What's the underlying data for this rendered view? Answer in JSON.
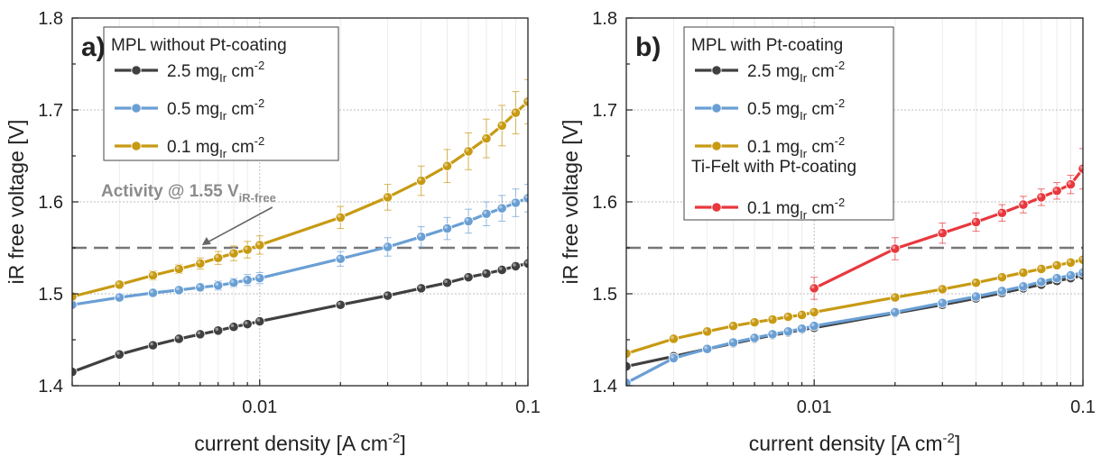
{
  "chart_data": [
    {
      "type": "line",
      "panel_label": "a)",
      "xlabel": "current density [A cm",
      "xlabel_sup": "-2",
      "xlabel_end": "]",
      "ylabel": "iR free voltage [V]",
      "xscale": "log",
      "xlim": [
        0.002,
        0.1
      ],
      "ylim": [
        1.4,
        1.8
      ],
      "x_ticks": [
        0.01,
        0.1
      ],
      "x_tick_labels": [
        "0.01",
        "0.1"
      ],
      "y_ticks": [
        1.4,
        1.5,
        1.6,
        1.7,
        1.8
      ],
      "y_tick_labels": [
        "1.4",
        "1.5",
        "1.6",
        "1.7",
        "1.8"
      ],
      "grid": true,
      "legend_placement": "top-left",
      "legend_title": "MPL without Pt-coating",
      "reference_line": {
        "y": 1.55,
        "style": "dashed",
        "color": "#777777"
      },
      "annotation": {
        "text": "Activity @ 1.55 V",
        "sub": "iR-free",
        "arrow_to": [
          0.006,
          1.55
        ]
      },
      "series": [
        {
          "name_main": "2.5 mg",
          "name_sub": "Ir",
          "name_unit": " cm",
          "name_sup": "-2",
          "color": "#404040",
          "x": [
            0.002,
            0.003,
            0.004,
            0.005,
            0.006,
            0.007,
            0.008,
            0.009,
            0.01,
            0.02,
            0.03,
            0.04,
            0.05,
            0.06,
            0.07,
            0.08,
            0.09,
            0.1
          ],
          "y": [
            1.415,
            1.434,
            1.444,
            1.451,
            1.456,
            1.46,
            1.464,
            1.467,
            1.47,
            1.488,
            1.498,
            1.506,
            1.512,
            1.518,
            1.522,
            1.526,
            1.53,
            1.533
          ],
          "err": [
            0.002,
            0.002,
            0.002,
            0.002,
            0.002,
            0.002,
            0.002,
            0.002,
            0.002,
            0.002,
            0.002,
            0.002,
            0.002,
            0.002,
            0.002,
            0.002,
            0.002,
            0.002
          ]
        },
        {
          "name_main": "0.5 mg",
          "name_sub": "Ir",
          "name_unit": " cm",
          "name_sup": "-2",
          "color": "#6a9fd4",
          "x": [
            0.002,
            0.003,
            0.004,
            0.005,
            0.006,
            0.007,
            0.008,
            0.009,
            0.01,
            0.02,
            0.03,
            0.04,
            0.05,
            0.06,
            0.07,
            0.08,
            0.09,
            0.1
          ],
          "y": [
            1.488,
            1.496,
            1.501,
            1.504,
            1.507,
            1.509,
            1.512,
            1.515,
            1.517,
            1.538,
            1.551,
            1.562,
            1.571,
            1.579,
            1.587,
            1.593,
            1.599,
            1.604
          ],
          "err": [
            0.003,
            0.003,
            0.003,
            0.003,
            0.004,
            0.005,
            0.005,
            0.006,
            0.006,
            0.008,
            0.01,
            0.011,
            0.012,
            0.013,
            0.013,
            0.014,
            0.015,
            0.015
          ]
        },
        {
          "name_main": "0.1 mg",
          "name_sub": "Ir",
          "name_unit": " cm",
          "name_sup": "-2",
          "color": "#c79a12",
          "x": [
            0.002,
            0.003,
            0.004,
            0.005,
            0.006,
            0.007,
            0.008,
            0.009,
            0.01,
            0.02,
            0.03,
            0.04,
            0.05,
            0.06,
            0.07,
            0.08,
            0.09,
            0.1
          ],
          "y": [
            1.497,
            1.51,
            1.52,
            1.527,
            1.533,
            1.539,
            1.544,
            1.548,
            1.553,
            1.583,
            1.605,
            1.623,
            1.639,
            1.655,
            1.669,
            1.683,
            1.697,
            1.709
          ],
          "err": [
            0.004,
            0.004,
            0.005,
            0.005,
            0.006,
            0.007,
            0.008,
            0.009,
            0.01,
            0.012,
            0.014,
            0.016,
            0.018,
            0.02,
            0.021,
            0.022,
            0.023,
            0.024
          ]
        }
      ]
    },
    {
      "type": "line",
      "panel_label": "b)",
      "xlabel": "current density [A cm",
      "xlabel_sup": "-2",
      "xlabel_end": "]",
      "ylabel": "iR free voltage [V]",
      "xscale": "log",
      "xlim": [
        0.002,
        0.1
      ],
      "ylim": [
        1.4,
        1.8
      ],
      "x_ticks": [
        0.01,
        0.1
      ],
      "x_tick_labels": [
        "0.01",
        "0.1"
      ],
      "y_ticks": [
        1.4,
        1.5,
        1.6,
        1.7,
        1.8
      ],
      "y_tick_labels": [
        "1.4",
        "1.5",
        "1.6",
        "1.7",
        "1.8"
      ],
      "grid": true,
      "legend_placement": "top-left",
      "legend_title": "MPL with Pt-coating",
      "legend_subtitle": "Ti-Felt with Pt-coating",
      "reference_line": {
        "y": 1.55,
        "style": "dashed",
        "color": "#777777"
      },
      "series": [
        {
          "name_main": "2.5 mg",
          "name_sub": "Ir",
          "name_unit": " cm",
          "name_sup": "-2",
          "color": "#404040",
          "x": [
            0.002,
            0.003,
            0.004,
            0.005,
            0.006,
            0.007,
            0.008,
            0.009,
            0.01,
            0.02,
            0.03,
            0.04,
            0.05,
            0.06,
            0.07,
            0.08,
            0.09,
            0.1
          ],
          "y": [
            1.421,
            1.432,
            1.44,
            1.446,
            1.451,
            1.455,
            1.458,
            1.461,
            1.463,
            1.479,
            1.488,
            1.495,
            1.501,
            1.506,
            1.51,
            1.514,
            1.517,
            1.52
          ],
          "err": [
            0.002,
            0.002,
            0.002,
            0.002,
            0.002,
            0.002,
            0.002,
            0.002,
            0.002,
            0.002,
            0.002,
            0.002,
            0.002,
            0.002,
            0.002,
            0.002,
            0.002,
            0.002
          ]
        },
        {
          "name_main": "0.5 mg",
          "name_sub": "Ir",
          "name_unit": " cm",
          "name_sup": "-2",
          "color": "#6a9fd4",
          "x": [
            0.002,
            0.003,
            0.004,
            0.005,
            0.006,
            0.007,
            0.008,
            0.009,
            0.01,
            0.02,
            0.03,
            0.04,
            0.05,
            0.06,
            0.07,
            0.08,
            0.09,
            0.1
          ],
          "y": [
            1.403,
            1.43,
            1.44,
            1.447,
            1.452,
            1.456,
            1.459,
            1.462,
            1.465,
            1.48,
            1.49,
            1.497,
            1.503,
            1.508,
            1.513,
            1.517,
            1.52,
            1.523
          ],
          "err": [
            0.002,
            0.002,
            0.002,
            0.002,
            0.002,
            0.002,
            0.002,
            0.002,
            0.002,
            0.002,
            0.002,
            0.002,
            0.002,
            0.002,
            0.002,
            0.002,
            0.002,
            0.002
          ]
        },
        {
          "name_main": "0.1 mg",
          "name_sub": "Ir",
          "name_unit": " cm",
          "name_sup": "-2",
          "color": "#c79a12",
          "x": [
            0.002,
            0.003,
            0.004,
            0.005,
            0.006,
            0.007,
            0.008,
            0.009,
            0.01,
            0.02,
            0.03,
            0.04,
            0.05,
            0.06,
            0.07,
            0.08,
            0.09,
            0.1
          ],
          "y": [
            1.435,
            1.451,
            1.459,
            1.465,
            1.469,
            1.472,
            1.475,
            1.477,
            1.48,
            1.496,
            1.505,
            1.512,
            1.518,
            1.523,
            1.527,
            1.531,
            1.534,
            1.537
          ],
          "err": [
            0.002,
            0.002,
            0.002,
            0.002,
            0.002,
            0.002,
            0.002,
            0.002,
            0.002,
            0.002,
            0.002,
            0.002,
            0.002,
            0.002,
            0.002,
            0.002,
            0.002,
            0.002
          ]
        },
        {
          "name_main": "0.1 mg",
          "name_sub": "Ir",
          "name_unit": " cm",
          "name_sup": "-2",
          "color": "#e8383d",
          "x": [
            0.01,
            0.02,
            0.03,
            0.04,
            0.05,
            0.06,
            0.07,
            0.08,
            0.09,
            0.1
          ],
          "y": [
            1.506,
            1.549,
            1.566,
            1.578,
            1.588,
            1.597,
            1.605,
            1.612,
            1.619,
            1.636
          ],
          "err": [
            0.012,
            0.012,
            0.011,
            0.01,
            0.009,
            0.009,
            0.009,
            0.009,
            0.01,
            0.022
          ]
        }
      ]
    }
  ]
}
